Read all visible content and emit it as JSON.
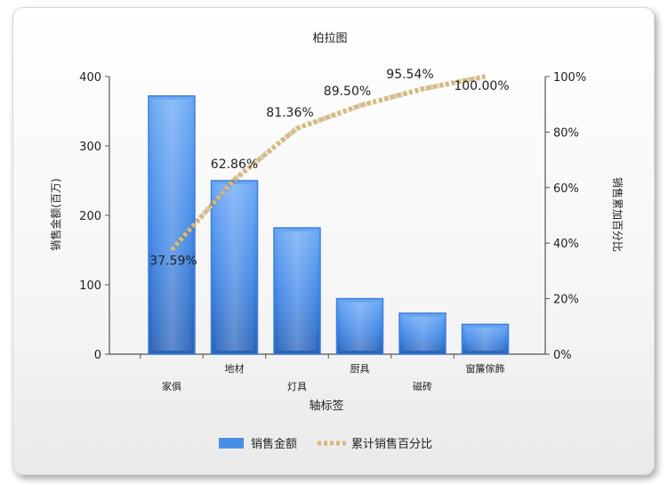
{
  "chart_data": {
    "type": "bar",
    "title": "柏拉图",
    "xlabel": "轴标签",
    "ylabel": "销售金额(百万)",
    "y2label": "销售累加百分比",
    "categories": [
      "家俱",
      "地材",
      "灯具",
      "厨具",
      "磁砖",
      "窗簾傢飾"
    ],
    "ylim": [
      0,
      400
    ],
    "yticks": [
      0,
      100,
      200,
      300,
      400
    ],
    "y2lim": [
      0,
      100
    ],
    "y2ticks": [
      "0%",
      "20%",
      "40%",
      "60%",
      "80%",
      "100%"
    ],
    "grid": false,
    "legend_position": "bottom",
    "series": [
      {
        "name": "销售金额",
        "type": "bar",
        "axis": "left",
        "color": "#4a8fe6",
        "values": [
          372,
          250,
          182,
          80,
          59,
          43
        ]
      },
      {
        "name": "累计销售百分比",
        "type": "line",
        "axis": "right",
        "color": "#d9b878",
        "values": [
          37.59,
          62.86,
          81.36,
          89.5,
          95.54,
          100.0
        ],
        "labels": [
          "37.59%",
          "62.86%",
          "81.36%",
          "89.50%",
          "95.54%",
          "100.00%"
        ]
      }
    ]
  }
}
